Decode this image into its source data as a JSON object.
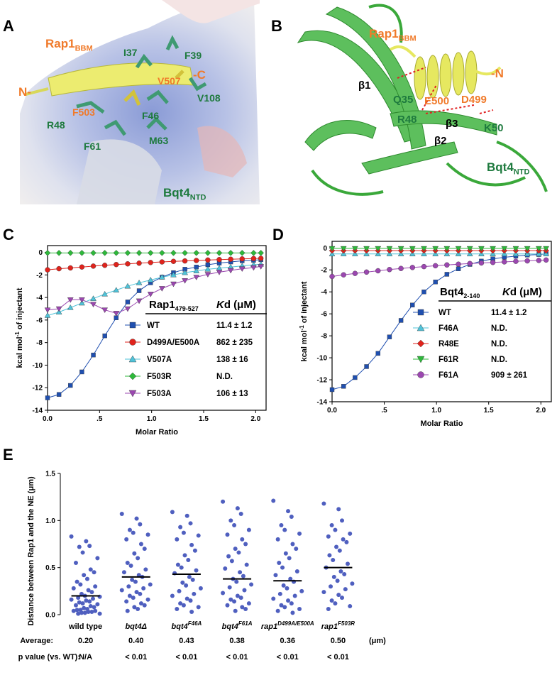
{
  "panels": {
    "A": "A",
    "B": "B",
    "C": "C",
    "D": "D",
    "E": "E"
  },
  "panel_a": {
    "rap1_label": "Rap1",
    "rap1_sub": "BBM",
    "n_term": "N-",
    "c_term": "-C",
    "bqt4_label": "Bqt4",
    "bqt4_sub": "NTD",
    "residues": [
      "I37",
      "F39",
      "V507",
      "V108",
      "F503",
      "F46",
      "R48",
      "F61",
      "M63"
    ]
  },
  "panel_b": {
    "rap1_label": "Rap1",
    "rap1_sub": "BBM",
    "n_term": "-N",
    "bqt4_label": "Bqt4",
    "bqt4_sub": "NTD",
    "residues": [
      "β1",
      "Q35",
      "E500",
      "D499",
      "R48",
      "β3",
      "K50",
      "β2"
    ]
  },
  "colors": {
    "blue": "#1f4fb0",
    "red": "#e0231c",
    "cyan": "#4fc3d9",
    "green": "#2db83a",
    "purple": "#9b47b0",
    "scatter": "#4f5fbf",
    "rap1_orange": "#f07a2a",
    "bqt4_green": "#1e7a3e"
  },
  "chart_data": [
    {
      "type": "line",
      "panel": "C",
      "ylabel": "kcal mol-1 of injectant",
      "xlabel": "Molar Ratio",
      "xlim": [
        0,
        2.1
      ],
      "ylim": [
        -14,
        0.6
      ],
      "xticks": [
        "0.0",
        ".5",
        "1.0",
        "1.5",
        "2.0"
      ],
      "yticks": [
        "0",
        "-2",
        "-4",
        "-6",
        "-8",
        "-10",
        "-12",
        "-14"
      ],
      "legend_title": "Rap1",
      "legend_title_sub": "479-527",
      "legend_kd_header": "Kd (μM)",
      "x": [
        0.0,
        0.11,
        0.22,
        0.33,
        0.44,
        0.55,
        0.66,
        0.77,
        0.88,
        0.99,
        1.1,
        1.21,
        1.32,
        1.43,
        1.54,
        1.65,
        1.76,
        1.87,
        1.98,
        2.05
      ],
      "series": [
        {
          "name": "WT",
          "kd": "11.4 ± 1.2",
          "marker": "square",
          "color": "#1f4fb0",
          "values": [
            -12.9,
            -12.6,
            -11.8,
            -10.6,
            -9.1,
            -7.4,
            -5.8,
            -4.4,
            -3.4,
            -2.7,
            -2.2,
            -1.8,
            -1.5,
            -1.3,
            -1.1,
            -0.95,
            -0.85,
            -0.75,
            -0.7,
            -0.65
          ]
        },
        {
          "name": "D499A/E500A",
          "kd": "862 ± 235",
          "marker": "circle",
          "color": "#e0231c",
          "values": [
            -1.55,
            -1.45,
            -1.38,
            -1.3,
            -1.22,
            -1.15,
            -1.08,
            -1.02,
            -0.96,
            -0.9,
            -0.85,
            -0.8,
            -0.76,
            -0.72,
            -0.68,
            -0.64,
            -0.61,
            -0.58,
            -0.55,
            -0.53
          ]
        },
        {
          "name": "V507A",
          "kd": "138 ± 16",
          "marker": "triangle-up",
          "color": "#4fc3d9",
          "values": [
            -5.6,
            -5.3,
            -4.9,
            -4.5,
            -4.1,
            -3.7,
            -3.35,
            -3.0,
            -2.7,
            -2.45,
            -2.2,
            -2.0,
            -1.8,
            -1.65,
            -1.5,
            -1.4,
            -1.3,
            -1.2,
            -1.1,
            -1.05
          ]
        },
        {
          "name": "F503R",
          "kd": "N.D.",
          "marker": "diamond",
          "color": "#2db83a",
          "values": [
            -0.05,
            -0.05,
            -0.05,
            -0.05,
            -0.05,
            -0.05,
            -0.05,
            -0.05,
            -0.05,
            -0.05,
            -0.05,
            -0.05,
            -0.05,
            -0.05,
            -0.05,
            -0.05,
            -0.05,
            -0.05,
            -0.05,
            -0.05
          ]
        },
        {
          "name": "F503A",
          "kd": "106 ± 13",
          "marker": "triangle-down",
          "color": "#9b47b0",
          "values": [
            -5.1,
            -5.0,
            -4.2,
            -4.2,
            -4.6,
            -5.1,
            -5.4,
            -5.0,
            -4.3,
            -3.7,
            -3.2,
            -2.8,
            -2.5,
            -2.2,
            -1.95,
            -1.75,
            -1.6,
            -1.45,
            -1.35,
            -1.25
          ]
        }
      ]
    },
    {
      "type": "line",
      "panel": "D",
      "ylabel": "kcal mol-1 of injectant",
      "xlabel": "Molar Ratio",
      "xlim": [
        0,
        2.1
      ],
      "ylim": [
        -14,
        0.6
      ],
      "xticks": [
        "0.0",
        ".5",
        "1.0",
        "1.5",
        "2.0"
      ],
      "yticks": [
        "0",
        "-2",
        "-4",
        "-6",
        "-8",
        "-10",
        "-12",
        "-14"
      ],
      "legend_title": "Bqt4",
      "legend_title_sub": "2-140",
      "legend_kd_header": "Kd (μM)",
      "x": [
        0.0,
        0.11,
        0.22,
        0.33,
        0.44,
        0.55,
        0.66,
        0.77,
        0.88,
        0.99,
        1.1,
        1.21,
        1.32,
        1.43,
        1.54,
        1.65,
        1.76,
        1.87,
        1.98,
        2.05
      ],
      "series": [
        {
          "name": "WT",
          "kd": "11.4 ± 1.2",
          "marker": "square",
          "color": "#1f4fb0",
          "values": [
            -12.9,
            -12.6,
            -11.8,
            -10.8,
            -9.6,
            -8.1,
            -6.6,
            -5.2,
            -4.0,
            -3.1,
            -2.4,
            -1.9,
            -1.5,
            -1.2,
            -1.0,
            -0.85,
            -0.75,
            -0.65,
            -0.6,
            -0.55
          ]
        },
        {
          "name": "F46A",
          "kd": "N.D.",
          "marker": "triangle-up",
          "color": "#4fc3d9",
          "values": [
            -0.55,
            -0.55,
            -0.55,
            -0.55,
            -0.55,
            -0.55,
            -0.55,
            -0.55,
            -0.55,
            -0.55,
            -0.55,
            -0.55,
            -0.55,
            -0.55,
            -0.55,
            -0.55,
            -0.55,
            -0.55,
            -0.55,
            -0.55
          ]
        },
        {
          "name": "R48E",
          "kd": "N.D.",
          "marker": "diamond",
          "color": "#e0231c",
          "values": [
            -0.25,
            -0.25,
            -0.25,
            -0.25,
            -0.25,
            -0.25,
            -0.25,
            -0.25,
            -0.25,
            -0.25,
            -0.25,
            -0.25,
            -0.25,
            -0.25,
            -0.25,
            -0.25,
            -0.25,
            -0.25,
            -0.25,
            -0.25
          ]
        },
        {
          "name": "F61R",
          "kd": "N.D.",
          "marker": "triangle-down",
          "color": "#2db83a",
          "values": [
            -0.05,
            -0.05,
            -0.05,
            -0.05,
            -0.05,
            -0.05,
            -0.05,
            -0.05,
            -0.05,
            -0.05,
            -0.05,
            -0.05,
            -0.05,
            -0.05,
            -0.05,
            -0.05,
            -0.05,
            -0.05,
            -0.05,
            -0.05
          ]
        },
        {
          "name": "F61A",
          "kd": "909 ± 261",
          "marker": "circle",
          "color": "#9b47b0",
          "values": [
            -2.6,
            -2.45,
            -2.32,
            -2.2,
            -2.08,
            -1.97,
            -1.87,
            -1.78,
            -1.7,
            -1.62,
            -1.55,
            -1.48,
            -1.42,
            -1.37,
            -1.32,
            -1.27,
            -1.22,
            -1.18,
            -1.14,
            -1.1
          ]
        }
      ]
    },
    {
      "type": "scatter",
      "panel": "E",
      "ylabel": "Distance between Rap1 and the NE (μm)",
      "ylim": [
        0,
        1.5
      ],
      "yticks": [
        "0.0",
        "0.5",
        "1.0",
        "1.5"
      ],
      "categories": [
        {
          "base": "wild type",
          "italic_base": false,
          "sup": ""
        },
        {
          "base": "bqt4Δ",
          "italic_base": true,
          "sup": ""
        },
        {
          "base": "bqt4",
          "italic_base": true,
          "sup": "F46A"
        },
        {
          "base": "bqt4",
          "italic_base": true,
          "sup": "F61A"
        },
        {
          "base": "rap1",
          "italic_base": true,
          "sup": "D499A/E500A"
        },
        {
          "base": "rap1",
          "italic_base": true,
          "sup": "F503R"
        }
      ],
      "averages": [
        0.2,
        0.4,
        0.43,
        0.38,
        0.36,
        0.5
      ],
      "average_label": "Average:",
      "average_values": [
        "0.20",
        "0.40",
        "0.43",
        "0.38",
        "0.36",
        "0.50"
      ],
      "average_unit": "(μm)",
      "pvalue_label": "p value (vs. WT):",
      "pvalues": [
        "N/A",
        "< 0.01",
        "< 0.01",
        "< 0.01",
        "< 0.01",
        "< 0.01"
      ],
      "points": [
        [
          0.83,
          0.78,
          0.73,
          0.72,
          0.66,
          0.6,
          0.55,
          0.48,
          0.45,
          0.42,
          0.38,
          0.35,
          0.32,
          0.3,
          0.28,
          0.26,
          0.24,
          0.22,
          0.2,
          0.19,
          0.18,
          0.17,
          0.16,
          0.15,
          0.14,
          0.13,
          0.12,
          0.11,
          0.1,
          0.09,
          0.08,
          0.07,
          0.06,
          0.05,
          0.05,
          0.04,
          0.04,
          0.03,
          0.03,
          0.02,
          0.02,
          0.01,
          0.01
        ],
        [
          1.07,
          1.02,
          0.96,
          0.9,
          0.87,
          0.85,
          0.8,
          0.75,
          0.7,
          0.65,
          0.6,
          0.55,
          0.52,
          0.48,
          0.45,
          0.42,
          0.4,
          0.37,
          0.35,
          0.32,
          0.3,
          0.28,
          0.26,
          0.24,
          0.22,
          0.2,
          0.18,
          0.16,
          0.14,
          0.12,
          0.1,
          0.08,
          0.06,
          0.04
        ],
        [
          1.09,
          1.05,
          0.97,
          0.93,
          0.87,
          0.84,
          0.8,
          0.74,
          0.68,
          0.63,
          0.58,
          0.53,
          0.5,
          0.47,
          0.44,
          0.4,
          0.37,
          0.34,
          0.31,
          0.28,
          0.25,
          0.22,
          0.2,
          0.17,
          0.15,
          0.12,
          0.1,
          0.08,
          0.06,
          0.03
        ],
        [
          1.2,
          1.13,
          1.07,
          1.0,
          0.95,
          0.9,
          0.85,
          0.8,
          0.75,
          0.7,
          0.66,
          0.62,
          0.57,
          0.53,
          0.49,
          0.45,
          0.41,
          0.38,
          0.35,
          0.32,
          0.29,
          0.26,
          0.23,
          0.2,
          0.18,
          0.16,
          0.14,
          0.12,
          0.1,
          0.08,
          0.06,
          0.04
        ],
        [
          1.21,
          1.1,
          1.04,
          0.95,
          0.9,
          0.86,
          0.8,
          0.75,
          0.7,
          0.65,
          0.6,
          0.55,
          0.5,
          0.46,
          0.42,
          0.38,
          0.35,
          0.31,
          0.28,
          0.25,
          0.22,
          0.2,
          0.17,
          0.15,
          0.12,
          0.1,
          0.08,
          0.06,
          0.04,
          0.02
        ],
        [
          1.18,
          1.12,
          1.0,
          0.95,
          0.9,
          0.86,
          0.83,
          0.8,
          0.77,
          0.72,
          0.68,
          0.63,
          0.58,
          0.54,
          0.5,
          0.46,
          0.43,
          0.4,
          0.36,
          0.33,
          0.3,
          0.27,
          0.24,
          0.21,
          0.18,
          0.15,
          0.12,
          0.09,
          0.06
        ]
      ]
    }
  ]
}
